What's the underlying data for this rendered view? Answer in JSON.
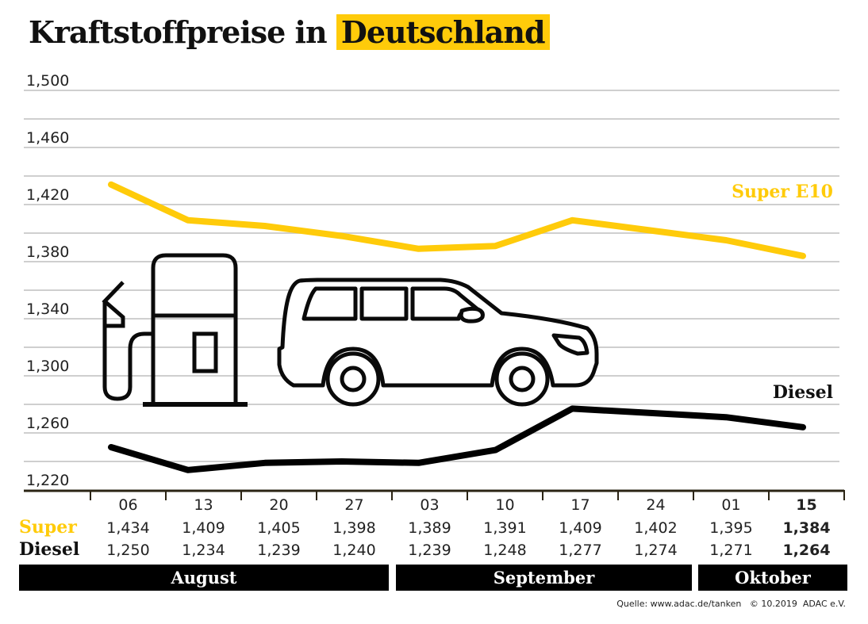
{
  "header": {
    "title_part1": "Kraftstoffpreise in",
    "title_part2": "Deutschland"
  },
  "colors": {
    "super": "#ffcb0a",
    "diesel": "#000000",
    "grid": "#cfcfcf",
    "axis": "#2b2414",
    "month_bar": "#000000"
  },
  "chart_data": {
    "type": "line",
    "title": "Kraftstoffpreise in Deutschland",
    "xlabel": "",
    "ylabel": "",
    "ylim": [
      1.22,
      1.5
    ],
    "yticks": [
      "1,500",
      "1,460",
      "1,420",
      "1,380",
      "1,340",
      "1,300",
      "1,260",
      "1,220"
    ],
    "ytick_values": [
      1.5,
      1.46,
      1.42,
      1.38,
      1.34,
      1.3,
      1.26,
      1.22
    ],
    "grid": true,
    "categories": [
      "06",
      "13",
      "20",
      "27",
      "03",
      "10",
      "17",
      "24",
      "01",
      "15"
    ],
    "highlight_last": true,
    "series": [
      {
        "name": "Super E10",
        "row_label": "Super",
        "color": "#ffcb0a",
        "values": [
          1.434,
          1.409,
          1.405,
          1.398,
          1.389,
          1.391,
          1.409,
          1.402,
          1.395,
          1.384
        ],
        "display": [
          "1,434",
          "1,409",
          "1,405",
          "1,398",
          "1,389",
          "1,391",
          "1,409",
          "1,402",
          "1,395",
          "1,384"
        ]
      },
      {
        "name": "Diesel",
        "row_label": "Diesel",
        "color": "#000000",
        "values": [
          1.25,
          1.234,
          1.239,
          1.24,
          1.239,
          1.248,
          1.277,
          1.274,
          1.271,
          1.264
        ],
        "display": [
          "1,250",
          "1,234",
          "1,239",
          "1,240",
          "1,239",
          "1,248",
          "1,277",
          "1,274",
          "1,271",
          "1,264"
        ]
      }
    ],
    "months": [
      {
        "label": "August",
        "span": 4
      },
      {
        "label": "September",
        "span": 4
      },
      {
        "label": "Oktober",
        "span": 2
      }
    ],
    "legend": "inline-right",
    "decorations": [
      "fuel-pump-icon",
      "car-icon"
    ]
  },
  "footer": {
    "source": "Quelle: www.adac.de/tanken   © 10.2019  ADAC e.V."
  }
}
